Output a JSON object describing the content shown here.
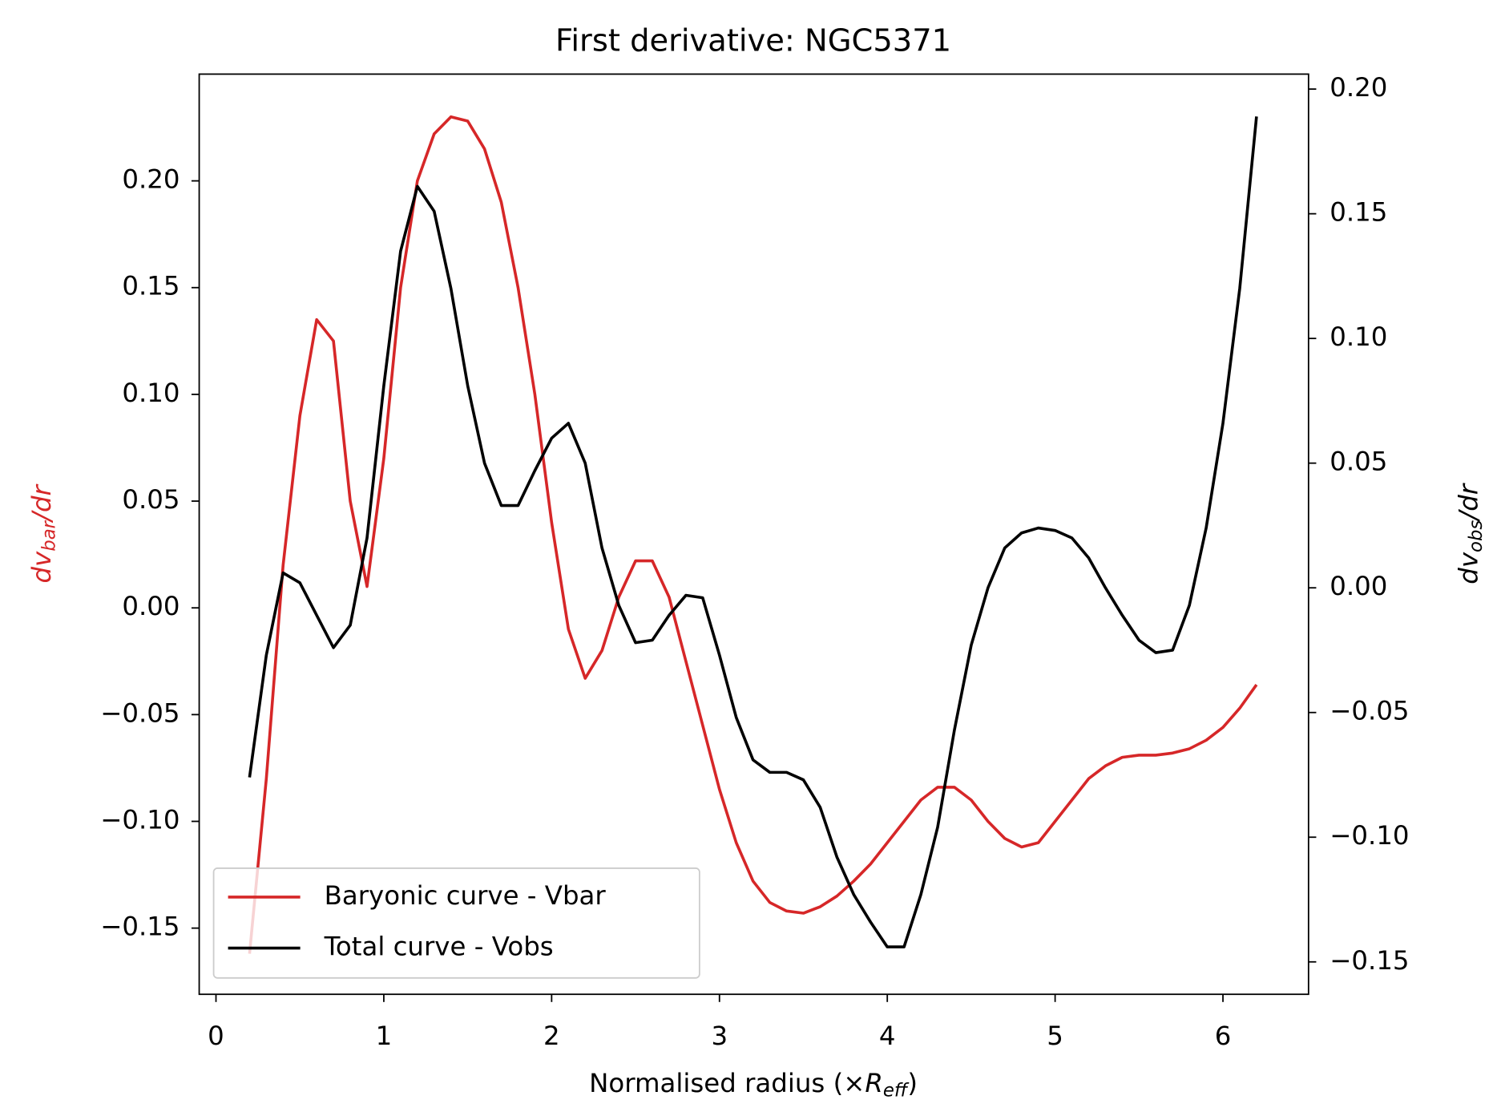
{
  "chart_data": {
    "type": "line",
    "title": "First derivative: NGC5371",
    "xlabel": {
      "text": "Normalised radius (×",
      "italic": "R",
      "sub": "eff",
      "end": ")"
    },
    "ylabel": {
      "italic": "dv",
      "sub": "bar",
      "end": "/dr"
    },
    "y2label": {
      "italic": "dv",
      "sub": "obs",
      "end": "/dr"
    },
    "x": [
      0.2,
      0.3,
      0.4,
      0.5,
      0.6,
      0.7,
      0.8,
      0.9,
      1.0,
      1.1,
      1.2,
      1.3,
      1.4,
      1.5,
      1.6,
      1.7,
      1.8,
      1.9,
      2.0,
      2.1,
      2.2,
      2.3,
      2.4,
      2.5,
      2.6,
      2.7,
      2.8,
      2.9,
      3.0,
      3.1,
      3.2,
      3.3,
      3.4,
      3.5,
      3.6,
      3.7,
      3.8,
      3.9,
      4.0,
      4.1,
      4.2,
      4.3,
      4.4,
      4.5,
      4.6,
      4.7,
      4.8,
      4.9,
      5.0,
      5.1,
      5.2,
      5.3,
      5.4,
      5.5,
      5.6,
      5.7,
      5.8,
      5.9,
      6.0,
      6.1,
      6.2
    ],
    "series": [
      {
        "name": "Baryonic curve - Vbar",
        "color": "#d62728",
        "axis": "y",
        "values": [
          -0.162,
          -0.08,
          0.02,
          0.09,
          0.135,
          0.125,
          0.05,
          0.01,
          0.07,
          0.15,
          0.2,
          0.222,
          0.23,
          0.228,
          0.215,
          0.19,
          0.15,
          0.1,
          0.04,
          -0.01,
          -0.033,
          -0.02,
          0.005,
          0.022,
          0.022,
          0.005,
          -0.025,
          -0.055,
          -0.085,
          -0.11,
          -0.128,
          -0.138,
          -0.142,
          -0.143,
          -0.14,
          -0.135,
          -0.128,
          -0.12,
          -0.11,
          -0.1,
          -0.09,
          -0.084,
          -0.084,
          -0.09,
          -0.1,
          -0.108,
          -0.112,
          -0.11,
          -0.1,
          -0.09,
          -0.08,
          -0.074,
          -0.07,
          -0.069,
          -0.069,
          -0.068,
          -0.066,
          -0.062,
          -0.056,
          -0.047,
          -0.036
        ]
      },
      {
        "name": "Total curve - Vobs",
        "color": "#000000",
        "axis": "y2",
        "values": [
          -0.076,
          -0.027,
          0.006,
          0.002,
          -0.011,
          -0.024,
          -0.015,
          0.02,
          0.081,
          0.135,
          0.161,
          0.151,
          0.12,
          0.081,
          0.05,
          0.033,
          0.033,
          0.047,
          0.06,
          0.066,
          0.05,
          0.016,
          -0.007,
          -0.022,
          -0.021,
          -0.011,
          -0.003,
          -0.004,
          -0.027,
          -0.052,
          -0.069,
          -0.074,
          -0.074,
          -0.077,
          -0.088,
          -0.108,
          -0.123,
          -0.134,
          -0.144,
          -0.144,
          -0.123,
          -0.096,
          -0.057,
          -0.023,
          0.0,
          0.016,
          0.022,
          0.024,
          0.023,
          0.02,
          0.012,
          0.0,
          -0.011,
          -0.021,
          -0.026,
          -0.025,
          -0.007,
          0.024,
          0.066,
          0.12,
          0.189
        ]
      }
    ],
    "xlim": [
      -0.1,
      6.51
    ],
    "xticks": [
      0,
      1,
      2,
      3,
      4,
      5,
      6
    ],
    "ylim": [
      -0.181,
      0.25
    ],
    "yticks": [
      {
        "value": -0.15,
        "label": "−0.15"
      },
      {
        "value": -0.1,
        "label": "−0.10"
      },
      {
        "value": -0.05,
        "label": "−0.05"
      },
      {
        "value": 0,
        "label": "0.00"
      },
      {
        "value": 0.05,
        "label": "0.05"
      },
      {
        "value": 0.1,
        "label": "0.10"
      },
      {
        "value": 0.15,
        "label": "0.15"
      },
      {
        "value": 0.2,
        "label": "0.20"
      }
    ],
    "y2lim": [
      -0.163,
      0.206
    ],
    "y2ticks": [
      {
        "value": -0.15,
        "label": "−0.15"
      },
      {
        "value": -0.1,
        "label": "−0.10"
      },
      {
        "value": -0.05,
        "label": "−0.05"
      },
      {
        "value": 0,
        "label": "0.00"
      },
      {
        "value": 0.05,
        "label": "0.05"
      },
      {
        "value": 0.1,
        "label": "0.10"
      },
      {
        "value": 0.15,
        "label": "0.15"
      },
      {
        "value": 0.2,
        "label": "0.20"
      }
    ],
    "legend": "lower left",
    "grid": false
  }
}
